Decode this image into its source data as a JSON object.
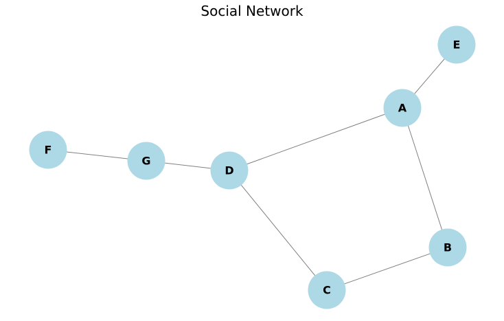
{
  "title": "Social Network",
  "style": {
    "node_color": "#add8e6",
    "edge_color": "#808080",
    "label_color": "#000000"
  },
  "graph": {
    "nodes": [
      {
        "id": "A",
        "label": "A"
      },
      {
        "id": "B",
        "label": "B"
      },
      {
        "id": "C",
        "label": "C"
      },
      {
        "id": "D",
        "label": "D"
      },
      {
        "id": "E",
        "label": "E"
      },
      {
        "id": "F",
        "label": "F"
      },
      {
        "id": "G",
        "label": "G"
      }
    ],
    "edges": [
      {
        "source": "A",
        "target": "E"
      },
      {
        "source": "A",
        "target": "D"
      },
      {
        "source": "A",
        "target": "B"
      },
      {
        "source": "B",
        "target": "C"
      },
      {
        "source": "C",
        "target": "D"
      },
      {
        "source": "D",
        "target": "G"
      },
      {
        "source": "G",
        "target": "F"
      }
    ]
  }
}
